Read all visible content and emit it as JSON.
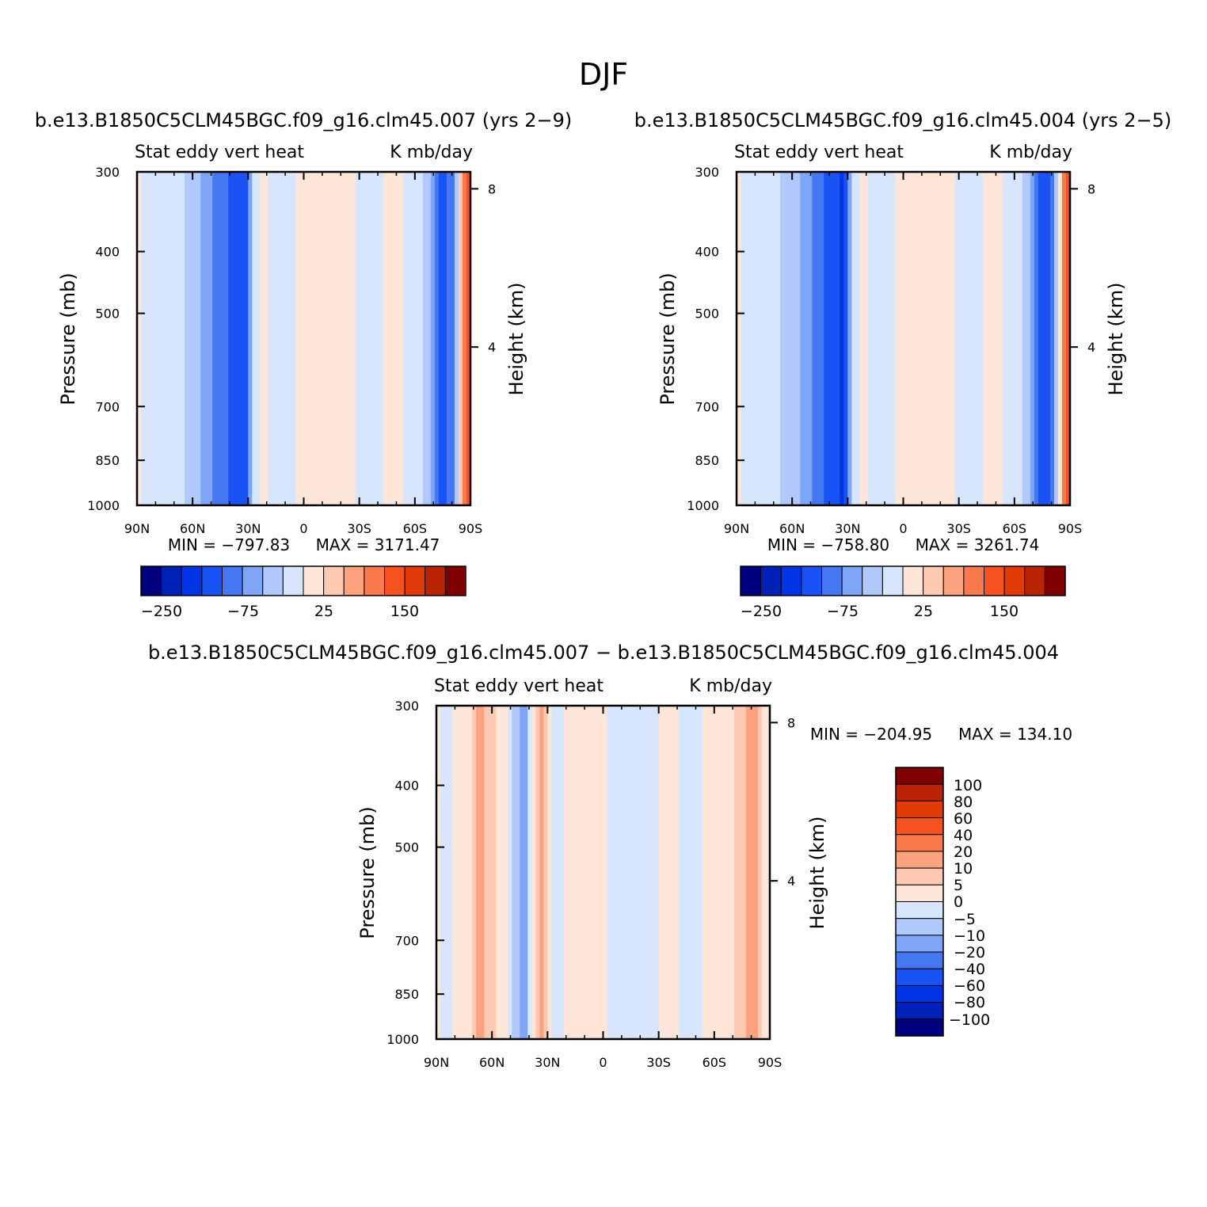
{
  "figure_title": "DJF",
  "chart_data": [
    {
      "type": "heatmap",
      "title": "b.e13.B1850C5CLM45BGC.f09_g16.clm45.007 (yrs 2−9)",
      "left_subtitle": "Stat eddy vert heat",
      "right_subtitle": "K mb/day",
      "ylabel": "Pressure (mb)",
      "y2label": "Height (km)",
      "x_ticks": [
        "90N",
        "60N",
        "30N",
        "0",
        "30S",
        "60S",
        "90S"
      ],
      "x_range": [
        90,
        -90
      ],
      "y_ticks": [
        300,
        400,
        500,
        700,
        850,
        1000
      ],
      "y_range": [
        300,
        1000
      ],
      "y2_ticks": [
        8,
        4
      ],
      "min_text": "MIN = −797.83",
      "max_text": "MAX = 3171.47",
      "colorbar_labels": [
        "−250",
        "−75",
        "25",
        "150"
      ],
      "profile": [
        {
          "lat": 90,
          "v": 3
        },
        {
          "lat": 80,
          "v": -8
        },
        {
          "lat": 72,
          "v": -14
        },
        {
          "lat": 64,
          "v": -25
        },
        {
          "lat": 56,
          "v": -45
        },
        {
          "lat": 50,
          "v": -70
        },
        {
          "lat": 44,
          "v": -90
        },
        {
          "lat": 38,
          "v": -110
        },
        {
          "lat": 33,
          "v": -150
        },
        {
          "lat": 28,
          "v": -30
        },
        {
          "lat": 22,
          "v": 3
        },
        {
          "lat": 16,
          "v": -4
        },
        {
          "lat": 10,
          "v": -6
        },
        {
          "lat": 5,
          "v": -2
        },
        {
          "lat": 0,
          "v": 4
        },
        {
          "lat": -8,
          "v": 12
        },
        {
          "lat": -16,
          "v": 18
        },
        {
          "lat": -24,
          "v": 8
        },
        {
          "lat": -30,
          "v": -3
        },
        {
          "lat": -38,
          "v": -4
        },
        {
          "lat": -44,
          "v": 1
        },
        {
          "lat": -50,
          "v": 4
        },
        {
          "lat": -56,
          "v": -4
        },
        {
          "lat": -62,
          "v": -10
        },
        {
          "lat": -68,
          "v": -40
        },
        {
          "lat": -74,
          "v": -110
        },
        {
          "lat": -80,
          "v": -90
        },
        {
          "lat": -86,
          "v": 60
        },
        {
          "lat": -90,
          "v": 150
        }
      ]
    },
    {
      "type": "heatmap",
      "title": "b.e13.B1850C5CLM45BGC.f09_g16.clm45.004 (yrs 2−5)",
      "left_subtitle": "Stat eddy vert heat",
      "right_subtitle": "K mb/day",
      "ylabel": "Pressure (mb)",
      "y2label": "Height (km)",
      "x_ticks": [
        "90N",
        "60N",
        "30N",
        "0",
        "30S",
        "60S",
        "90S"
      ],
      "x_range": [
        90,
        -90
      ],
      "y_ticks": [
        300,
        400,
        500,
        700,
        850,
        1000
      ],
      "y_range": [
        300,
        1000
      ],
      "y2_ticks": [
        8,
        4
      ],
      "min_text": "MIN = −758.80",
      "max_text": "MAX = 3261.74",
      "colorbar_labels": [
        "−250",
        "−75",
        "25",
        "150"
      ],
      "profile": [
        {
          "lat": 90,
          "v": 3
        },
        {
          "lat": 80,
          "v": -8
        },
        {
          "lat": 72,
          "v": -14
        },
        {
          "lat": 64,
          "v": -28
        },
        {
          "lat": 56,
          "v": -50
        },
        {
          "lat": 50,
          "v": -75
        },
        {
          "lat": 44,
          "v": -95
        },
        {
          "lat": 38,
          "v": -120
        },
        {
          "lat": 33,
          "v": -160
        },
        {
          "lat": 28,
          "v": -25
        },
        {
          "lat": 22,
          "v": 4
        },
        {
          "lat": 16,
          "v": -4
        },
        {
          "lat": 10,
          "v": -6
        },
        {
          "lat": 5,
          "v": -2
        },
        {
          "lat": 0,
          "v": 4
        },
        {
          "lat": -8,
          "v": 12
        },
        {
          "lat": -16,
          "v": 20
        },
        {
          "lat": -24,
          "v": 8
        },
        {
          "lat": -30,
          "v": -3
        },
        {
          "lat": -38,
          "v": -4
        },
        {
          "lat": -44,
          "v": 1
        },
        {
          "lat": -50,
          "v": 4
        },
        {
          "lat": -56,
          "v": -4
        },
        {
          "lat": -62,
          "v": -10
        },
        {
          "lat": -68,
          "v": -45
        },
        {
          "lat": -74,
          "v": -120
        },
        {
          "lat": -80,
          "v": -95
        },
        {
          "lat": -86,
          "v": 60
        },
        {
          "lat": -90,
          "v": 150
        }
      ]
    },
    {
      "type": "heatmap",
      "title": "b.e13.B1850C5CLM45BGC.f09_g16.clm45.007 − b.e13.B1850C5CLM45BGC.f09_g16.clm45.004",
      "left_subtitle": "Stat eddy vert heat",
      "right_subtitle": "K mb/day",
      "ylabel": "Pressure (mb)",
      "y2label": "Height (km)",
      "x_ticks": [
        "90N",
        "60N",
        "30N",
        "0",
        "30S",
        "60S",
        "90S"
      ],
      "x_range": [
        90,
        -90
      ],
      "y_ticks": [
        300,
        400,
        500,
        700,
        850,
        1000
      ],
      "y_range": [
        300,
        1000
      ],
      "y2_ticks": [
        8,
        4
      ],
      "min_text": "MIN = −204.95",
      "max_text": "MAX = 134.10",
      "colorbar_labels": [
        "100",
        "80",
        "60",
        "40",
        "20",
        "10",
        "5",
        "0",
        "−5",
        "−10",
        "−20",
        "−40",
        "−60",
        "−80",
        "−100"
      ],
      "profile": [
        {
          "lat": 90,
          "v": 1
        },
        {
          "lat": 84,
          "v": -1
        },
        {
          "lat": 78,
          "v": 2
        },
        {
          "lat": 72,
          "v": 4
        },
        {
          "lat": 66,
          "v": 12
        },
        {
          "lat": 60,
          "v": 6
        },
        {
          "lat": 54,
          "v": 3
        },
        {
          "lat": 48,
          "v": -6
        },
        {
          "lat": 42,
          "v": -12
        },
        {
          "lat": 38,
          "v": 3
        },
        {
          "lat": 34,
          "v": 12
        },
        {
          "lat": 30,
          "v": 4
        },
        {
          "lat": 26,
          "v": -3
        },
        {
          "lat": 20,
          "v": 2
        },
        {
          "lat": 14,
          "v": 3
        },
        {
          "lat": 8,
          "v": 2
        },
        {
          "lat": 2,
          "v": 3
        },
        {
          "lat": -4,
          "v": -2
        },
        {
          "lat": -12,
          "v": -1
        },
        {
          "lat": -20,
          "v": -2
        },
        {
          "lat": -28,
          "v": -1
        },
        {
          "lat": -36,
          "v": 3
        },
        {
          "lat": -44,
          "v": -2
        },
        {
          "lat": -50,
          "v": -1
        },
        {
          "lat": -56,
          "v": 1
        },
        {
          "lat": -62,
          "v": 3
        },
        {
          "lat": -68,
          "v": 4
        },
        {
          "lat": -74,
          "v": 6
        },
        {
          "lat": -80,
          "v": 14
        },
        {
          "lat": -86,
          "v": 5
        },
        {
          "lat": -90,
          "v": 2
        }
      ]
    }
  ],
  "colorbar_levels": [
    -250,
    -200,
    -150,
    -100,
    -75,
    -50,
    -25,
    0,
    25,
    50,
    75,
    100,
    150,
    200,
    250
  ],
  "diff_colorbar_levels": [
    -100,
    -80,
    -60,
    -40,
    -20,
    -10,
    -5,
    0,
    5,
    10,
    20,
    40,
    60,
    80,
    100
  ],
  "colors": {
    "palette": [
      "#00007f",
      "#0021b8",
      "#0034e4",
      "#1a53f5",
      "#4577f2",
      "#7fa5f7",
      "#b0c8fb",
      "#d7e6fd",
      "#fde6d8",
      "#fdc9b0",
      "#fca27f",
      "#fa7a4e",
      "#f65220",
      "#e03a07",
      "#b82404",
      "#7f0000"
    ]
  }
}
